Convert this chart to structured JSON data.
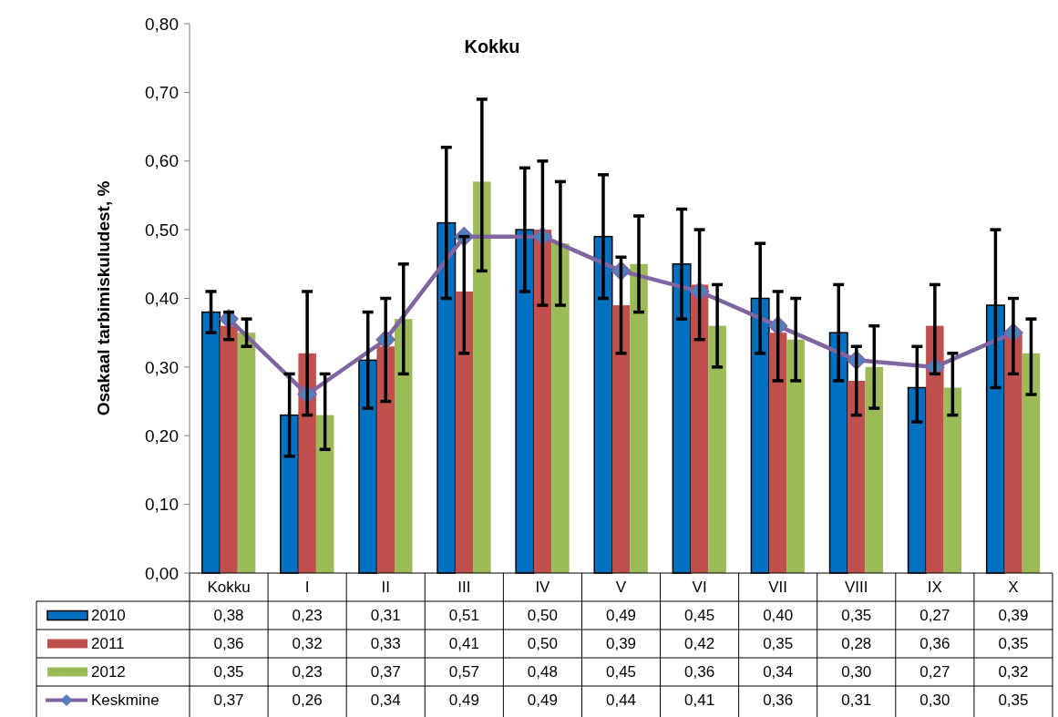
{
  "chart_data": {
    "type": "bar",
    "title": "Kokku",
    "ylabel": "Osakaal tarbimiskuludest, %",
    "categories": [
      "Kokku",
      "I",
      "II",
      "III",
      "IV",
      "V",
      "VI",
      "VII",
      "VIII",
      "IX",
      "X"
    ],
    "series": [
      {
        "name": "2010",
        "color": "#0070c0",
        "values": [
          0.38,
          0.23,
          0.31,
          0.51,
          0.5,
          0.49,
          0.45,
          0.4,
          0.35,
          0.27,
          0.39
        ],
        "value_labels": [
          "0,38",
          "0,23",
          "0,31",
          "0,51",
          "0,50",
          "0,49",
          "0,45",
          "0,40",
          "0,35",
          "0,27",
          "0,39"
        ],
        "errors": [
          [
            0.35,
            0.41
          ],
          [
            0.17,
            0.29
          ],
          [
            0.24,
            0.38
          ],
          [
            0.4,
            0.62
          ],
          [
            0.41,
            0.59
          ],
          [
            0.4,
            0.58
          ],
          [
            0.37,
            0.53
          ],
          [
            0.32,
            0.48
          ],
          [
            0.28,
            0.42
          ],
          [
            0.22,
            0.33
          ],
          [
            0.27,
            0.5
          ]
        ]
      },
      {
        "name": "2011",
        "color": "#c0504d",
        "values": [
          0.36,
          0.32,
          0.33,
          0.41,
          0.5,
          0.39,
          0.42,
          0.35,
          0.28,
          0.36,
          0.35
        ],
        "value_labels": [
          "0,36",
          "0,32",
          "0,33",
          "0,41",
          "0,50",
          "0,39",
          "0,42",
          "0,35",
          "0,28",
          "0,36",
          "0,35"
        ],
        "errors": [
          [
            0.34,
            0.38
          ],
          [
            0.23,
            0.41
          ],
          [
            0.25,
            0.4
          ],
          [
            0.32,
            0.49
          ],
          [
            0.39,
            0.6
          ],
          [
            0.32,
            0.46
          ],
          [
            0.34,
            0.5
          ],
          [
            0.28,
            0.41
          ],
          [
            0.23,
            0.33
          ],
          [
            0.29,
            0.42
          ],
          [
            0.29,
            0.4
          ]
        ]
      },
      {
        "name": "2012",
        "color": "#9bbb59",
        "values": [
          0.35,
          0.23,
          0.37,
          0.57,
          0.48,
          0.45,
          0.36,
          0.34,
          0.3,
          0.27,
          0.32
        ],
        "value_labels": [
          "0,35",
          "0,23",
          "0,37",
          "0,57",
          "0,48",
          "0,45",
          "0,36",
          "0,34",
          "0,30",
          "0,27",
          "0,32"
        ],
        "errors": [
          [
            0.33,
            0.37
          ],
          [
            0.18,
            0.29
          ],
          [
            0.29,
            0.45
          ],
          [
            0.44,
            0.69
          ],
          [
            0.39,
            0.57
          ],
          [
            0.38,
            0.52
          ],
          [
            0.3,
            0.42
          ],
          [
            0.28,
            0.4
          ],
          [
            0.24,
            0.36
          ],
          [
            0.23,
            0.32
          ],
          [
            0.26,
            0.37
          ]
        ]
      },
      {
        "name": "Keskmine",
        "type": "line",
        "color": "#8064a2",
        "marker": "diamond",
        "values": [
          0.37,
          0.26,
          0.34,
          0.49,
          0.49,
          0.44,
          0.41,
          0.36,
          0.31,
          0.3,
          0.35
        ],
        "value_labels": [
          "0,37",
          "0,26",
          "0,34",
          "0,49",
          "0,49",
          "0,44",
          "0,41",
          "0,36",
          "0,31",
          "0,30",
          "0,35"
        ]
      }
    ],
    "ylim": [
      0,
      0.8
    ],
    "yticks": [
      {
        "value": 0,
        "label": "0,00"
      },
      {
        "value": 0.1,
        "label": "0,10"
      },
      {
        "value": 0.2,
        "label": "0,20"
      },
      {
        "value": 0.3,
        "label": "0,30"
      },
      {
        "value": 0.4,
        "label": "0,40"
      },
      {
        "value": 0.5,
        "label": "0,50"
      },
      {
        "value": 0.6,
        "label": "0,60"
      },
      {
        "value": 0.7,
        "label": "0,70"
      },
      {
        "value": 0.8,
        "label": "0,80"
      }
    ],
    "legend": "bottom",
    "grid": false
  }
}
